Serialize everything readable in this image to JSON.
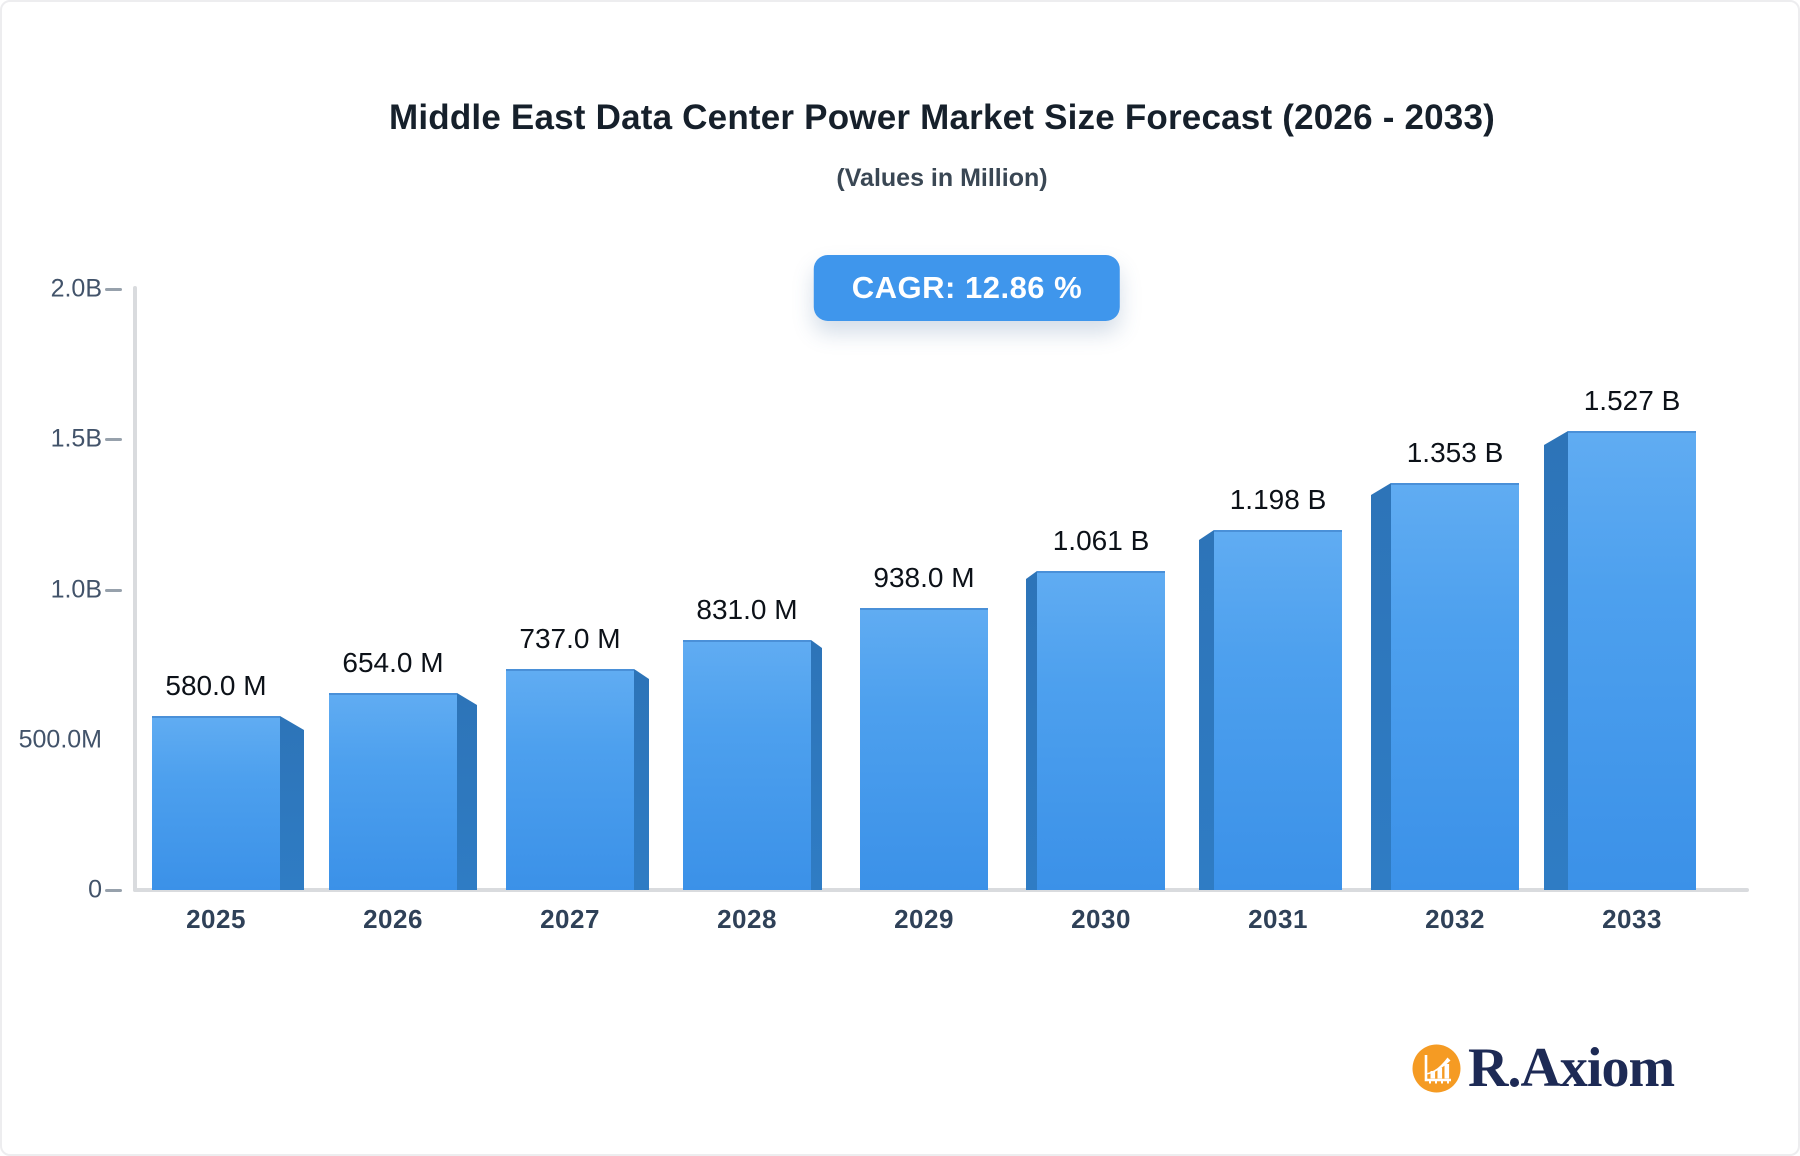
{
  "header": {
    "title": "Middle East Data Center Power Market Size Forecast (2026 - 2033)",
    "subtitle": "(Values in Million)",
    "cagr_label": "CAGR: 12.86 %"
  },
  "branding": {
    "name": "R.Axiom",
    "icon": "bar-chart-growth-icon"
  },
  "colors": {
    "accent-blue": "#3f96ec",
    "bar-face-top": "#60acf2",
    "bar-face-bottom": "#3b91e8",
    "bar-side": "#2d74b8",
    "axis-gray": "#d9dbde",
    "brand-orange": "#f59b23",
    "brand-navy": "#1d2a55"
  },
  "chart_data": {
    "type": "bar",
    "title": "Middle East Data Center Power Market Size Forecast (2026 - 2033)",
    "subtitle": "(Values in Million)",
    "cagr_percent": 12.86,
    "categories": [
      "2025",
      "2026",
      "2027",
      "2028",
      "2029",
      "2030",
      "2031",
      "2032",
      "2033"
    ],
    "values_million": [
      580,
      654,
      737,
      831,
      938,
      1061,
      1198,
      1353,
      1527
    ],
    "bar_labels": [
      "580.0 M",
      "654.0 M",
      "737.0 M",
      "831.0 M",
      "938.0 M",
      "1.061 B",
      "1.198 B",
      "1.353 B",
      "1.527 B"
    ],
    "yticks": [
      {
        "label": "2.0B",
        "value_million": 2000,
        "dash": true
      },
      {
        "label": "1.5B",
        "value_million": 1500,
        "dash": true
      },
      {
        "label": "1.0B",
        "value_million": 1000,
        "dash": true
      },
      {
        "label": "500.0M",
        "value_million": 500,
        "dash": false
      },
      {
        "label": "0",
        "value_million": 0,
        "dash": true
      }
    ],
    "ylim_million": [
      0,
      2000
    ],
    "grid": false,
    "legend": false,
    "style": "3d-perspective-bars"
  }
}
